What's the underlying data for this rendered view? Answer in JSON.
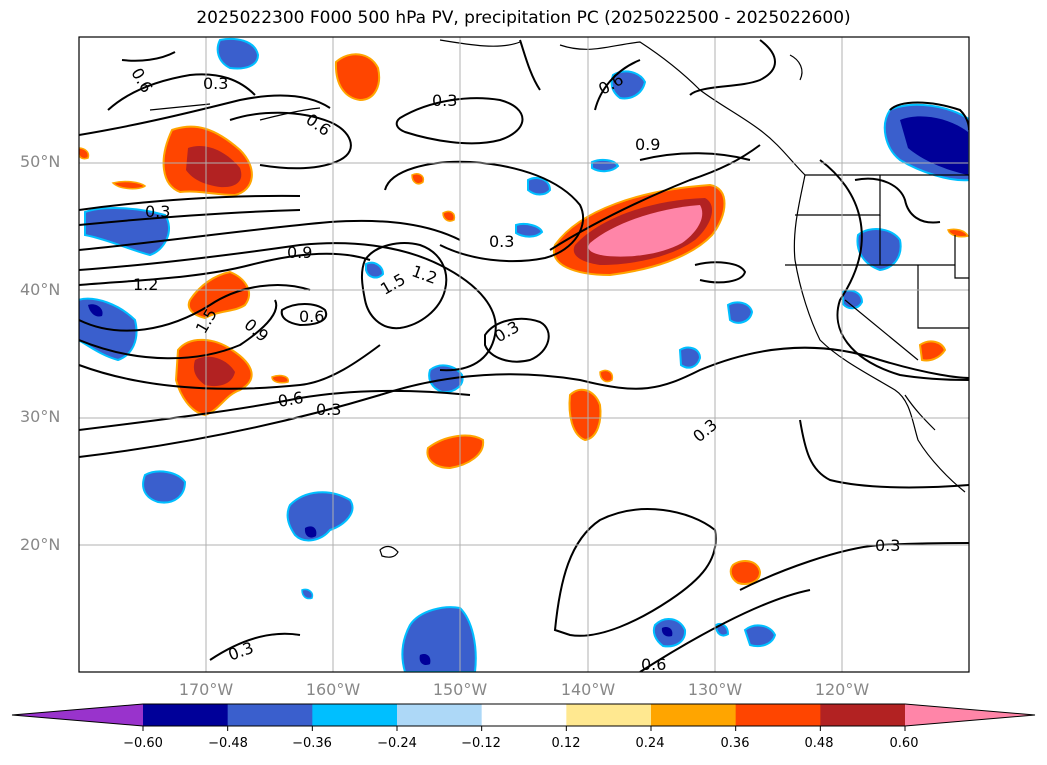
{
  "title": "2025022300 F000 500 hPa PV, precipitation PC (2025022500 - 2025022600)",
  "lat_labels": [
    "50°N",
    "40°N",
    "30°N",
    "20°N"
  ],
  "lon_labels": [
    "170°W",
    "160°W",
    "150°W",
    "140°W",
    "130°W",
    "120°W"
  ],
  "contour_labels": [
    "0.6",
    "0.3",
    "0.3",
    "0.6",
    "0.9",
    "0.6",
    "0.3",
    "0.3",
    "0.9",
    "1.2",
    "1.5",
    "1.2",
    "0.6",
    "0.9",
    "1.5",
    "0.3",
    "0.6",
    "0.3",
    "0.3",
    "0.3",
    "0.3",
    "0.6"
  ],
  "colorbar": {
    "ticks": [
      "−0.60",
      "−0.48",
      "−0.36",
      "−0.24",
      "−0.12",
      "0.12",
      "0.24",
      "0.36",
      "0.48",
      "0.60"
    ],
    "colors": [
      "#9933cc",
      "#000099",
      "#3a5fcd",
      "#00bfff",
      "#add8f7",
      "#ffffff",
      "#ffe890",
      "#ffa500",
      "#ff4500",
      "#b22222",
      "#ff85a8"
    ]
  }
}
